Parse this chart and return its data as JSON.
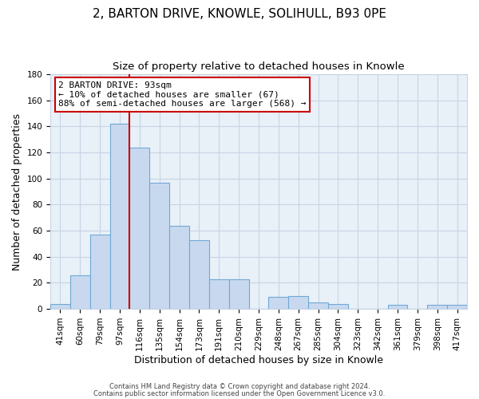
{
  "title": "2, BARTON DRIVE, KNOWLE, SOLIHULL, B93 0PE",
  "subtitle": "Size of property relative to detached houses in Knowle",
  "xlabel": "Distribution of detached houses by size in Knowle",
  "ylabel": "Number of detached properties",
  "bar_labels": [
    "41sqm",
    "60sqm",
    "79sqm",
    "97sqm",
    "116sqm",
    "135sqm",
    "154sqm",
    "173sqm",
    "191sqm",
    "210sqm",
    "229sqm",
    "248sqm",
    "267sqm",
    "285sqm",
    "304sqm",
    "323sqm",
    "342sqm",
    "361sqm",
    "379sqm",
    "398sqm",
    "417sqm"
  ],
  "bar_values": [
    4,
    26,
    57,
    142,
    124,
    97,
    64,
    53,
    23,
    23,
    0,
    9,
    10,
    5,
    4,
    0,
    0,
    3,
    0,
    3,
    3
  ],
  "bar_color": "#c8d9ef",
  "bar_edge_color": "#6fa8d6",
  "vline_color": "#cc0000",
  "ylim": [
    0,
    180
  ],
  "yticks": [
    0,
    20,
    40,
    60,
    80,
    100,
    120,
    140,
    160,
    180
  ],
  "annotation_title": "2 BARTON DRIVE: 93sqm",
  "annotation_line1": "← 10% of detached houses are smaller (67)",
  "annotation_line2": "88% of semi-detached houses are larger (568) →",
  "annotation_box_color": "#ffffff",
  "annotation_box_edge": "#cc0000",
  "footer1": "Contains HM Land Registry data © Crown copyright and database right 2024.",
  "footer2": "Contains public sector information licensed under the Open Government Licence v3.0.",
  "title_fontsize": 11,
  "subtitle_fontsize": 9.5,
  "tick_fontsize": 7.5,
  "ylabel_fontsize": 9,
  "xlabel_fontsize": 9,
  "background_color": "#ffffff",
  "plot_bg_color": "#e8f0f8",
  "grid_color": "#c8d4e4",
  "vline_bar_index": 3
}
